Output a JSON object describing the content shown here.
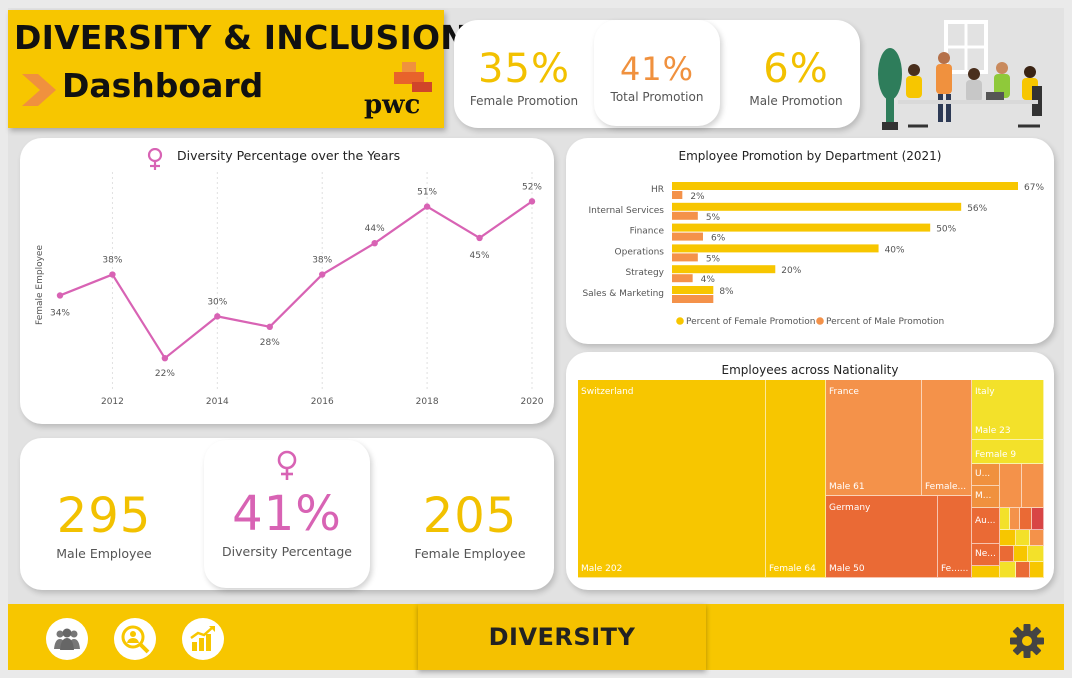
{
  "header": {
    "title": "DIVERSITY & INCLUSION",
    "subtitle": "Dashboard",
    "logo": "pwc"
  },
  "promotion_kpis": [
    {
      "value": "35%",
      "label": "Female Promotion",
      "color": "#f2c100"
    },
    {
      "value": "41%",
      "label": "Total Promotion",
      "color": "#f0913e"
    },
    {
      "value": "6%",
      "label": "Male Promotion",
      "color": "#f2c100"
    }
  ],
  "line_chart": {
    "title": "Diversity Percentage over the Years",
    "chart_data": {
      "type": "line",
      "title": "Diversity Percentage over the Years",
      "ylabel": "Female Employee",
      "x": [
        2011,
        2012,
        2013,
        2014,
        2015,
        2016,
        2017,
        2018,
        2019,
        2020
      ],
      "values": [
        34,
        38,
        22,
        30,
        28,
        38,
        44,
        51,
        45,
        52
      ],
      "labels": [
        "34%",
        "38%",
        "22%",
        "30%",
        "28%",
        "38%",
        "44%",
        "51%",
        "45%",
        "52%"
      ],
      "xticks": [
        "2012",
        "2014",
        "2016",
        "2018",
        "2020"
      ],
      "color": "#d863b4"
    }
  },
  "bar_chart": {
    "title": "Employee Promotion by Department (2021)",
    "chart_data": {
      "type": "bar",
      "orientation": "horizontal",
      "categories": [
        "HR",
        "Internal Services",
        "Finance",
        "Operations",
        "Strategy",
        "Sales & Marketing"
      ],
      "series": [
        {
          "name": "Percent of Female Promotion",
          "values": [
            67,
            56,
            50,
            40,
            20,
            8
          ],
          "labels": [
            "67%",
            "56%",
            "50%",
            "40%",
            "20%",
            "8%"
          ],
          "color": "#f7c600"
        },
        {
          "name": "Percent of Male Promotion",
          "values": [
            2,
            5,
            6,
            5,
            4,
            8
          ],
          "labels": [
            "2%",
            "5%",
            "6%",
            "5%",
            "4%",
            ""
          ],
          "color": "#f4924a"
        }
      ],
      "legend": "bottom"
    }
  },
  "employee_kpis": {
    "male": {
      "value": "295",
      "label": "Male Employee"
    },
    "diversity": {
      "value": "41%",
      "label": "Diversity Percentage"
    },
    "female": {
      "value": "205",
      "label": "Female Employee"
    }
  },
  "treemap": {
    "title": "Employees across Nationality",
    "labels": {
      "switzerland": "Switzerland",
      "sw_male": "Male 202",
      "sw_female": "Female 64",
      "france": "France",
      "fr_male": "Male 61",
      "fr_female": "Female...",
      "germany": "Germany",
      "de_male": "Male 50",
      "de_female": "Fe......",
      "italy": "Italy",
      "it_male": "Male 23",
      "it_female": "Female 9",
      "u": "U...",
      "m": "M...",
      "au": "Au...",
      "ne": "Ne..."
    }
  },
  "footer": {
    "button_label": "DIVERSITY"
  }
}
